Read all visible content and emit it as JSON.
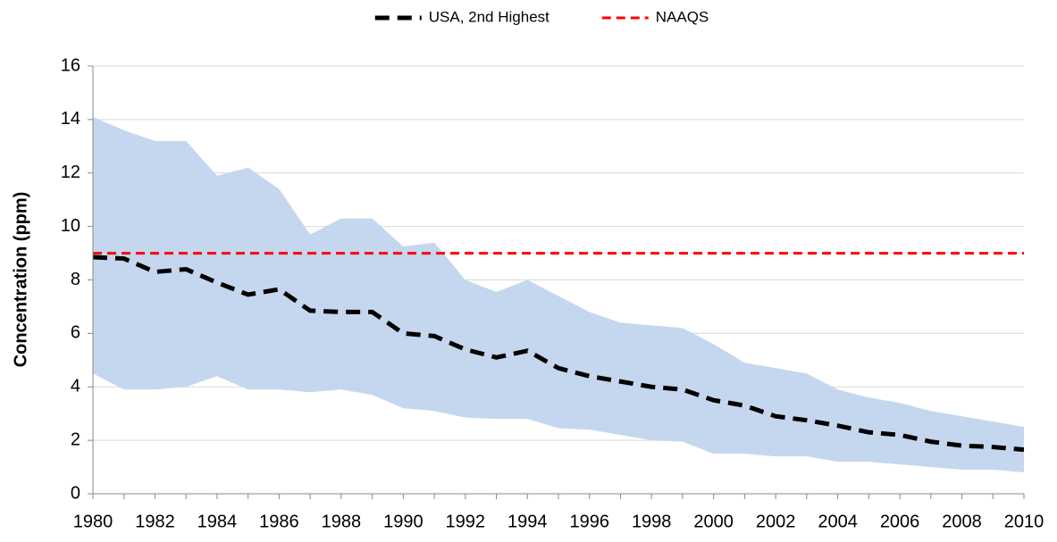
{
  "chart_data": {
    "type": "line",
    "y_label": "Concentration (ppm)",
    "x": [
      1980,
      1981,
      1982,
      1983,
      1984,
      1985,
      1986,
      1987,
      1988,
      1989,
      1990,
      1991,
      1992,
      1993,
      1994,
      1995,
      1996,
      1997,
      1998,
      1999,
      2000,
      2001,
      2002,
      2003,
      2004,
      2005,
      2006,
      2007,
      2008,
      2009,
      2010
    ],
    "xlim": [
      1980,
      2010
    ],
    "xticks": [
      1980,
      1982,
      1984,
      1986,
      1988,
      1990,
      1992,
      1994,
      1996,
      1998,
      2000,
      2002,
      2004,
      2006,
      2008,
      2010
    ],
    "ylim": [
      0,
      16
    ],
    "yticks": [
      0,
      2,
      4,
      6,
      8,
      10,
      12,
      14,
      16
    ],
    "grid": true,
    "legend": "top",
    "range": {
      "color": "#c5d7ef",
      "high": [
        14.1,
        13.6,
        13.2,
        13.2,
        11.9,
        12.2,
        11.4,
        9.7,
        10.3,
        10.3,
        9.25,
        9.4,
        8.0,
        7.55,
        8.0,
        7.4,
        6.8,
        6.4,
        6.3,
        6.2,
        5.6,
        4.9,
        4.7,
        4.5,
        3.9,
        3.6,
        3.4,
        3.1,
        2.9,
        2.7,
        2.5
      ],
      "low": [
        4.5,
        3.9,
        3.9,
        4.0,
        4.4,
        3.9,
        3.9,
        3.8,
        3.9,
        3.7,
        3.2,
        3.1,
        2.85,
        2.8,
        2.8,
        2.45,
        2.4,
        2.2,
        2.0,
        1.95,
        1.5,
        1.5,
        1.4,
        1.4,
        1.2,
        1.2,
        1.1,
        1.0,
        0.9,
        0.9,
        0.8
      ]
    },
    "series": [
      {
        "name": "USA, 2nd Highest",
        "color": "#000000",
        "width": 5,
        "dash": "16 9",
        "values": [
          8.85,
          8.8,
          8.3,
          8.4,
          7.9,
          7.45,
          7.65,
          6.85,
          6.8,
          6.8,
          6.0,
          5.9,
          5.4,
          5.1,
          5.35,
          4.7,
          4.4,
          4.2,
          4.0,
          3.9,
          3.5,
          3.3,
          2.9,
          2.75,
          2.55,
          2.3,
          2.2,
          1.95,
          1.8,
          1.75,
          1.65
        ]
      },
      {
        "name": "NAAQS",
        "color": "#ff0000",
        "width": 3,
        "dash": "10 6",
        "values": [
          9,
          9,
          9,
          9,
          9,
          9,
          9,
          9,
          9,
          9,
          9,
          9,
          9,
          9,
          9,
          9,
          9,
          9,
          9,
          9,
          9,
          9,
          9,
          9,
          9,
          9,
          9,
          9,
          9,
          9,
          9
        ]
      }
    ]
  }
}
